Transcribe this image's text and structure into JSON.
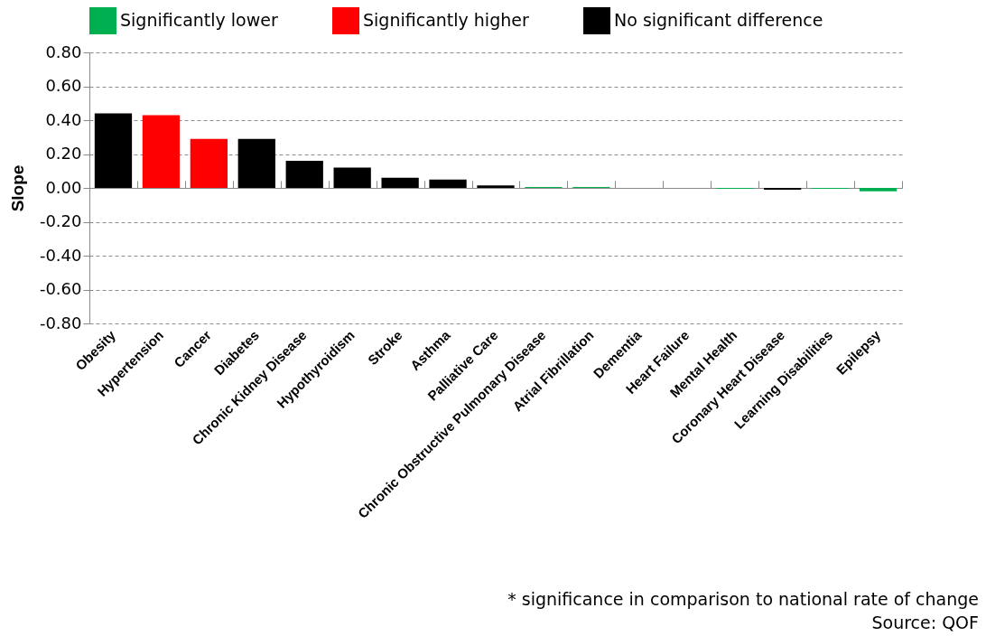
{
  "chart_data": {
    "type": "bar",
    "categories": [
      "Obesity",
      "Hypertension",
      "Cancer",
      "Diabetes",
      "Chronic Kidney Disease",
      "Hypothyroidism",
      "Stroke",
      "Asthma",
      "Palliative Care",
      "Chronic Obstructive Pulmonary Disease",
      "Atrial Fibrillation",
      "Dementia",
      "Heart Failure",
      "Mental Health",
      "Coronary Heart Disease",
      "Learning Disabilities",
      "Epilepsy"
    ],
    "series": [
      {
        "name": "Significantly lower",
        "color": "#00b050",
        "values": [
          null,
          null,
          null,
          null,
          null,
          null,
          null,
          null,
          null,
          0.005,
          0.005,
          null,
          null,
          -0.005,
          null,
          -0.005,
          -0.02
        ]
      },
      {
        "name": "Significantly higher",
        "color": "#ff0000",
        "values": [
          null,
          0.43,
          0.29,
          null,
          null,
          null,
          null,
          null,
          null,
          null,
          null,
          null,
          null,
          null,
          null,
          null,
          null
        ]
      },
      {
        "name": "No significant difference",
        "color": "#000000",
        "values": [
          0.44,
          null,
          null,
          0.29,
          0.16,
          0.12,
          0.06,
          0.05,
          0.015,
          null,
          null,
          0,
          0,
          null,
          -0.01,
          null,
          null
        ]
      }
    ],
    "ylabel": "Slope",
    "ylim": [
      -0.8,
      0.8
    ],
    "yticks": [
      {
        "value": -0.8,
        "label": "-0.80"
      },
      {
        "value": -0.6,
        "label": "-0.60"
      },
      {
        "value": -0.4,
        "label": "-0.40"
      },
      {
        "value": -0.2,
        "label": "-0.20"
      },
      {
        "value": 0,
        "label": "0.00"
      },
      {
        "value": 0.2,
        "label": "0.20"
      },
      {
        "value": 0.4,
        "label": "0.40"
      },
      {
        "value": 0.6,
        "label": "0.60"
      },
      {
        "value": 0.8,
        "label": "0.80"
      }
    ],
    "grid": "y",
    "legend": "top",
    "annotations": [
      "* significance in comparison to national rate of change",
      "Source: QOF"
    ]
  }
}
